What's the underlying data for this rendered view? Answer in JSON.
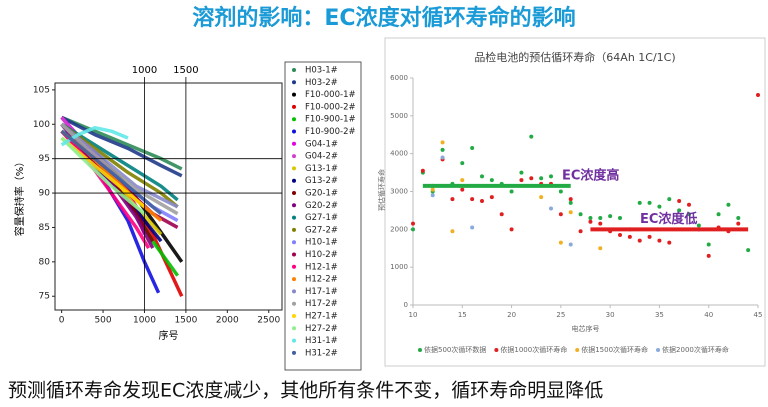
{
  "header": {
    "title": "溶剂的影响：EC浓度对循环寿命的影响"
  },
  "footer": {
    "text": "预测循环寿命发现EC浓度减少，其他所有条件不变，循环寿命明显降低"
  },
  "chart_data": [
    {
      "type": "line",
      "x_label": "序号",
      "y_label": "容量保持率（%）",
      "xlim": [
        -80,
        2660
      ],
      "ylim": [
        73,
        106
      ],
      "xticks": [
        0,
        500,
        1000,
        1500,
        2000,
        2500
      ],
      "yticks": [
        75,
        80,
        85,
        90,
        95,
        100,
        105
      ],
      "reference_lines": {
        "x": [
          1000,
          1500
        ],
        "y": [
          95,
          90
        ]
      },
      "series": [
        {
          "name": "H03-1#",
          "color": "#2e8b57",
          "x": [
            0,
            400,
            800,
            1200,
            1450
          ],
          "values": [
            101,
            99,
            97,
            95,
            93.5
          ]
        },
        {
          "name": "H03-2#",
          "color": "#1e3a8a",
          "x": [
            0,
            400,
            800,
            1200,
            1450
          ],
          "values": [
            101,
            98.5,
            96.5,
            94,
            92.5
          ]
        },
        {
          "name": "F10-000-1#",
          "color": "#000000",
          "x": [
            0,
            400,
            800,
            1100,
            1450
          ],
          "values": [
            100,
            96,
            91,
            86,
            80
          ]
        },
        {
          "name": "F10-000-2#",
          "color": "#e00000",
          "x": [
            0,
            400,
            800,
            1100,
            1450
          ],
          "values": [
            100,
            95.5,
            90,
            84,
            75
          ]
        },
        {
          "name": "F10-900-1#",
          "color": "#00c000",
          "x": [
            0,
            400,
            800,
            1100,
            1400
          ],
          "values": [
            100,
            95,
            89,
            83,
            78
          ]
        },
        {
          "name": "F10-900-2#",
          "color": "#1010e0",
          "x": [
            0,
            400,
            800,
            1000,
            1170
          ],
          "values": [
            100,
            94,
            86,
            80,
            75.5
          ]
        },
        {
          "name": "G04-1#",
          "color": "#e000e0",
          "x": [
            0,
            300,
            600,
            900,
            1000
          ],
          "values": [
            101,
            97,
            93,
            88,
            85
          ]
        },
        {
          "name": "G04-2#",
          "color": "#d040d0",
          "x": [
            0,
            300,
            600,
            900,
            1000
          ],
          "values": [
            101,
            96.5,
            92,
            87,
            84
          ]
        },
        {
          "name": "G13-1#",
          "color": "#d8c800",
          "x": [
            0,
            300,
            600,
            900,
            1200
          ],
          "values": [
            99,
            96,
            92,
            88,
            84
          ]
        },
        {
          "name": "G13-2#",
          "color": "#000080",
          "x": [
            0,
            300,
            600,
            900,
            1200
          ],
          "values": [
            99,
            95.5,
            91.5,
            87.5,
            83
          ]
        },
        {
          "name": "G20-1#",
          "color": "#800000",
          "x": [
            0,
            300,
            600,
            900,
            1100
          ],
          "values": [
            100,
            96,
            92,
            87,
            83
          ]
        },
        {
          "name": "G20-2#",
          "color": "#800080",
          "x": [
            0,
            300,
            600,
            900,
            1100
          ],
          "values": [
            100,
            96,
            91.5,
            86.5,
            82
          ]
        },
        {
          "name": "G27-1#",
          "color": "#008080",
          "x": [
            0,
            400,
            800,
            1200,
            1400
          ],
          "values": [
            100,
            97,
            94,
            91,
            89
          ]
        },
        {
          "name": "G27-2#",
          "color": "#808000",
          "x": [
            0,
            400,
            800,
            1200,
            1400
          ],
          "values": [
            100,
            96.5,
            93,
            90,
            88
          ]
        },
        {
          "name": "H10-1#",
          "color": "#8080ff",
          "x": [
            0,
            300,
            700,
            1100,
            1400
          ],
          "values": [
            99,
            96,
            92,
            88,
            86
          ]
        },
        {
          "name": "H10-2#",
          "color": "#a00050",
          "x": [
            0,
            300,
            700,
            1100,
            1400
          ],
          "values": [
            99,
            95.5,
            91.5,
            87,
            85
          ]
        },
        {
          "name": "H12-1#",
          "color": "#ff0080",
          "x": [
            0,
            300,
            600,
            900,
            1050
          ],
          "values": [
            99,
            95,
            90,
            85,
            82
          ]
        },
        {
          "name": "H12-2#",
          "color": "#ff8000",
          "x": [
            0,
            300,
            600,
            900,
            1200
          ],
          "values": [
            99,
            96,
            92.5,
            89,
            86
          ]
        },
        {
          "name": "H17-1#",
          "color": "#8888cc",
          "x": [
            0,
            300,
            600,
            900,
            1400
          ],
          "values": [
            100,
            97,
            94,
            91,
            88
          ]
        },
        {
          "name": "H17-2#",
          "color": "#a0a0a0",
          "x": [
            0,
            300,
            600,
            900,
            1400
          ],
          "values": [
            100,
            96.5,
            93.5,
            90.5,
            87
          ]
        },
        {
          "name": "H27-1#",
          "color": "#ffd700",
          "x": [
            0,
            300,
            600,
            900,
            1000
          ],
          "values": [
            98,
            95,
            92,
            89,
            88
          ]
        },
        {
          "name": "H27-2#",
          "color": "#90ee90",
          "x": [
            0,
            300,
            600,
            900,
            1000
          ],
          "values": [
            98,
            94.5,
            91,
            88,
            87
          ]
        },
        {
          "name": "H31-1#",
          "color": "#60e8e8",
          "x": [
            0,
            200,
            400,
            600,
            800
          ],
          "values": [
            97,
            98.5,
            99.5,
            99,
            98
          ]
        },
        {
          "name": "H31-2#",
          "color": "#4060a0",
          "x": [
            0,
            300,
            600,
            900,
            1200
          ],
          "values": [
            99,
            96,
            93,
            90,
            87
          ]
        }
      ]
    },
    {
      "type": "scatter",
      "title": "品检电池的预估循环寿命（64Ah 1C/1C)",
      "x_label": "电芯序号",
      "y_label": "预估循环寿命",
      "xlim": [
        10,
        45
      ],
      "ylim": [
        0,
        6000
      ],
      "xticks": [
        10,
        15,
        20,
        25,
        30,
        35,
        40,
        45
      ],
      "yticks": [
        0,
        1000,
        2000,
        3000,
        4000,
        5000,
        6000
      ],
      "series": [
        {
          "name": "依据500次循环数据",
          "color": "#22aa44",
          "x": [
            10,
            11,
            12,
            13,
            14,
            15,
            16,
            17,
            18,
            19,
            20,
            21,
            22,
            23,
            24,
            25,
            26,
            27,
            28,
            29,
            30,
            31,
            32,
            33,
            34,
            35,
            36,
            37,
            38,
            39,
            40,
            41,
            42,
            43,
            44
          ],
          "values": [
            2000,
            3500,
            3000,
            4100,
            3200,
            3750,
            4150,
            3400,
            3300,
            3200,
            3000,
            3500,
            4450,
            3350,
            3400,
            3000,
            2700,
            2400,
            2300,
            2300,
            2350,
            2300,
            2000,
            2700,
            2700,
            2600,
            2800,
            2500,
            2400,
            2100,
            1600,
            2400,
            2650,
            2300,
            1450
          ]
        },
        {
          "name": "依据1000次循环寿命",
          "color": "#e02020",
          "x": [
            10,
            11,
            12,
            13,
            14,
            15,
            16,
            17,
            18,
            19,
            20,
            21,
            22,
            23,
            24,
            25,
            26,
            27,
            28,
            29,
            30,
            31,
            32,
            33,
            34,
            35,
            36,
            37,
            38,
            39,
            40,
            41,
            42,
            43,
            45
          ],
          "values": [
            2150,
            3550,
            3150,
            3850,
            2800,
            3050,
            2800,
            2750,
            2850,
            2400,
            2000,
            3300,
            3350,
            3200,
            3200,
            2400,
            2800,
            1950,
            2200,
            2150,
            1950,
            1850,
            1800,
            1700,
            1800,
            1700,
            1650,
            2750,
            2650,
            2000,
            1300,
            2050,
            1950,
            2150,
            5550
          ]
        },
        {
          "name": "依据1500次循环寿命",
          "color": "#f0b020",
          "x": [
            12,
            13,
            14,
            15,
            23,
            25,
            26,
            29
          ],
          "values": [
            3050,
            4300,
            1950,
            3300,
            2850,
            1650,
            2450,
            1500
          ]
        },
        {
          "name": "依据2000次循环寿命",
          "color": "#88aadd",
          "x": [
            12,
            13,
            16,
            24,
            26
          ],
          "values": [
            2900,
            3900,
            2050,
            2550,
            1600
          ]
        }
      ],
      "annotations": [
        {
          "text": "EC浓度高",
          "color": "#22aa44",
          "from": 11,
          "to": 26,
          "value": 3150
        },
        {
          "text": "EC浓度低",
          "color": "#e02020",
          "from": 28,
          "to": 44,
          "value": 2000
        }
      ]
    }
  ]
}
